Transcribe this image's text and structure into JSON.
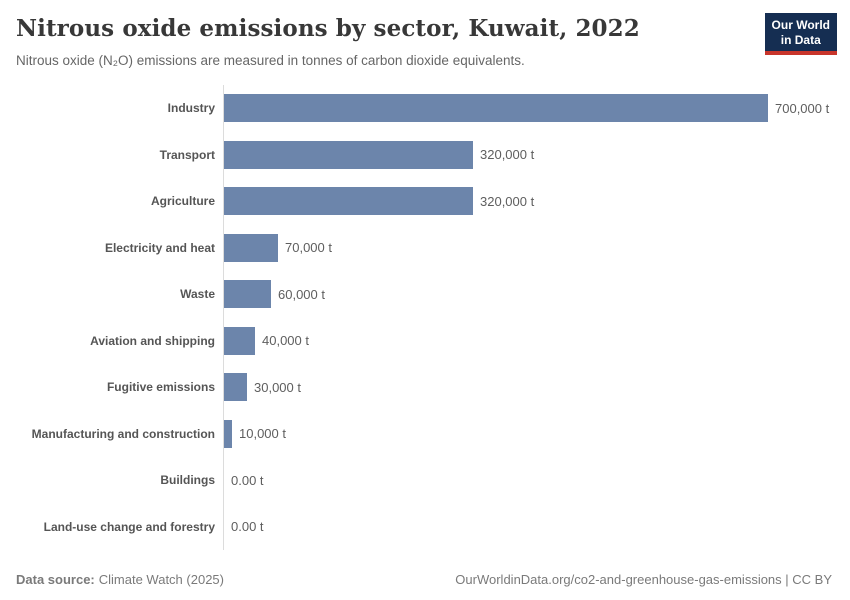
{
  "header": {
    "title": "Nitrous oxide emissions by sector, Kuwait, 2022",
    "subtitle": "Nitrous oxide (N₂O) emissions are measured in tonnes of carbon dioxide equivalents.",
    "logo_line1": "Our World",
    "logo_line2": "in Data"
  },
  "chart_data": {
    "type": "bar",
    "orientation": "horizontal",
    "title": "Nitrous oxide emissions by sector, Kuwait, 2022",
    "unit": "tonnes of carbon dioxide equivalents",
    "categories": [
      "Industry",
      "Transport",
      "Agriculture",
      "Electricity and heat",
      "Waste",
      "Aviation and shipping",
      "Fugitive emissions",
      "Manufacturing and construction",
      "Buildings",
      "Land-use change and forestry"
    ],
    "values": [
      700000,
      320000,
      320000,
      70000,
      60000,
      40000,
      30000,
      10000,
      0,
      0
    ],
    "value_labels": [
      "700,000 t",
      "320,000 t",
      "320,000 t",
      "70,000 t",
      "60,000 t",
      "40,000 t",
      "30,000 t",
      "10,000 t",
      "0.00 t",
      "0.00 t"
    ],
    "xlim": [
      0,
      700000
    ],
    "grid": false,
    "legend": "none"
  },
  "footer": {
    "datasource_label": "Data source:",
    "datasource_value": "Climate Watch (2025)",
    "attribution": "OurWorldinData.org/co2-and-greenhouse-gas-emissions | CC BY"
  },
  "colors": {
    "bar": "#6c85ab",
    "logo_bg": "#152e52",
    "logo_accent": "#c8352b",
    "axis_line": "#dcdcdc"
  }
}
